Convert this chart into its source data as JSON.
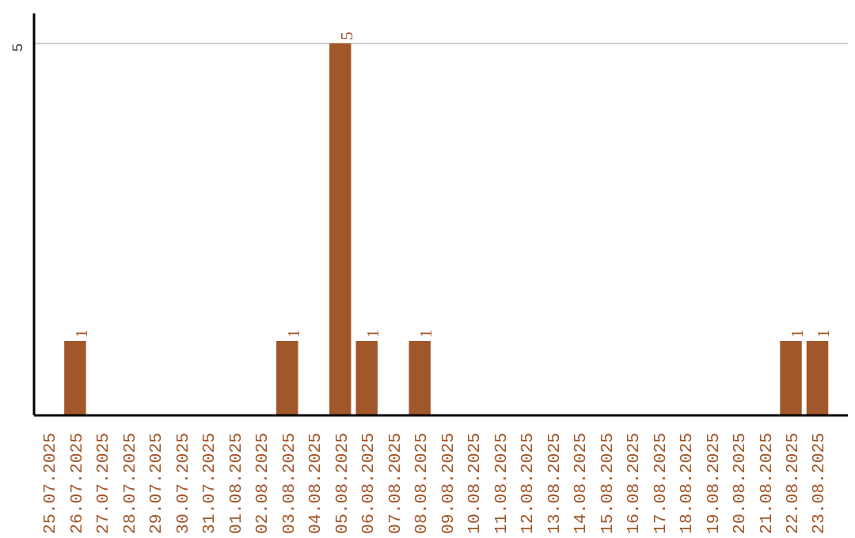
{
  "chart_data": {
    "type": "bar",
    "categories": [
      "25.07.2025",
      "26.07.2025",
      "27.07.2025",
      "28.07.2025",
      "29.07.2025",
      "30.07.2025",
      "31.07.2025",
      "01.08.2025",
      "02.08.2025",
      "03.08.2025",
      "04.08.2025",
      "05.08.2025",
      "06.08.2025",
      "07.08.2025",
      "08.08.2025",
      "09.08.2025",
      "10.08.2025",
      "11.08.2025",
      "12.08.2025",
      "13.08.2025",
      "14.08.2025",
      "15.08.2025",
      "16.08.2025",
      "17.08.2025",
      "18.08.2025",
      "19.08.2025",
      "20.08.2025",
      "21.08.2025",
      "22.08.2025",
      "23.08.2025"
    ],
    "values": [
      0,
      1,
      0,
      0,
      0,
      0,
      0,
      0,
      0,
      1,
      0,
      5,
      1,
      0,
      1,
      0,
      0,
      0,
      0,
      0,
      0,
      0,
      0,
      0,
      0,
      0,
      0,
      0,
      1,
      1
    ],
    "value_labels": [
      null,
      "1",
      null,
      null,
      null,
      null,
      null,
      null,
      null,
      "1",
      null,
      "5",
      "1",
      null,
      "1",
      null,
      null,
      null,
      null,
      null,
      null,
      null,
      null,
      null,
      null,
      null,
      null,
      null,
      "1",
      "1"
    ],
    "color": "#a0572a",
    "ylim": [
      0,
      5.4
    ],
    "yticks": [
      5
    ],
    "grid": "y"
  }
}
